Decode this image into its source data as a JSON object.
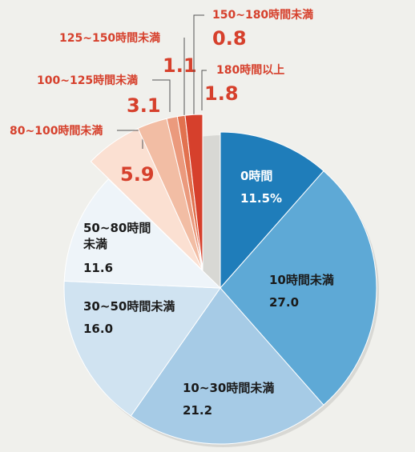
{
  "chart_data": {
    "type": "pie",
    "title": "",
    "slices": [
      {
        "label": "0時間",
        "value": 11.5,
        "display": "11.5%",
        "color": "#1f7dba",
        "text_color": "#ffffff"
      },
      {
        "label": "10時間未満",
        "value": 27.0,
        "display": "27.0",
        "color": "#5ea9d6",
        "text_color": "#1a1a1a"
      },
      {
        "label": "10~30時間未満",
        "value": 21.2,
        "display": "21.2",
        "color": "#a6cbe6",
        "text_color": "#1a1a1a"
      },
      {
        "label": "30~50時間未満",
        "value": 16.0,
        "display": "16.0",
        "color": "#d0e3f1",
        "text_color": "#1a1a1a"
      },
      {
        "label": "50~80時間未満",
        "value": 11.6,
        "display": "11.6",
        "color": "#eef4f9",
        "text_color": "#1a1a1a"
      },
      {
        "label": "80~100時間未満",
        "value": 5.9,
        "display": "5.9",
        "color": "#fbe0d2",
        "text_color": "#d6402c"
      },
      {
        "label": "100~125時間未満",
        "value": 3.1,
        "display": "3.1",
        "color": "#f2bda4",
        "text_color": "#d6402c"
      },
      {
        "label": "125~150時間未満",
        "value": 1.1,
        "display": "1.1",
        "color": "#eb9a7d",
        "text_color": "#d6402c"
      },
      {
        "label": "150~180時間未満",
        "value": 0.8,
        "display": "0.8",
        "color": "#e2724f",
        "text_color": "#d6402c"
      },
      {
        "label": "180時間以上",
        "value": 1.8,
        "display": "1.8",
        "color": "#d6402c",
        "text_color": "#d6402c"
      }
    ],
    "exploded_group": [
      "80~100時間未満",
      "100~125時間未満",
      "125~150時間未満",
      "150~180時間未満",
      "180時間以上"
    ]
  }
}
